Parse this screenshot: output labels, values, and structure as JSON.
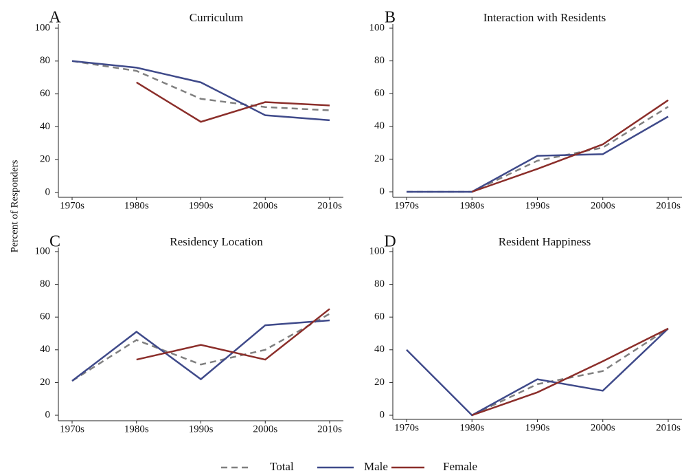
{
  "ylabel": "Percent of Responders",
  "chart_data": [
    {
      "type": "line",
      "label": "A",
      "title": "Curriculum",
      "categories": [
        "1970s",
        "1980s",
        "1990s",
        "2000s",
        "2010s"
      ],
      "ylim": [
        0,
        100
      ],
      "yticks": [
        0,
        20,
        40,
        60,
        80,
        100
      ],
      "series": [
        {
          "name": "Total",
          "color": "#808080",
          "dashed": true,
          "values": [
            80,
            74,
            57,
            52,
            50
          ]
        },
        {
          "name": "Male",
          "color": "#3f4a8a",
          "values": [
            80,
            76,
            67,
            47,
            44
          ]
        },
        {
          "name": "Female",
          "color": "#8b2e2a",
          "values": [
            null,
            67,
            43,
            55,
            53
          ]
        }
      ]
    },
    {
      "type": "line",
      "label": "B",
      "title": "Interaction with Residents",
      "categories": [
        "1970s",
        "1980s",
        "1990s",
        "2000s",
        "2010s"
      ],
      "ylim": [
        0,
        100
      ],
      "yticks": [
        0,
        20,
        40,
        60,
        80,
        100
      ],
      "series": [
        {
          "name": "Total",
          "color": "#808080",
          "dashed": true,
          "values": [
            0,
            0,
            19,
            27,
            52
          ]
        },
        {
          "name": "Male",
          "color": "#3f4a8a",
          "values": [
            0,
            0,
            22,
            23,
            46
          ]
        },
        {
          "name": "Female",
          "color": "#8b2e2a",
          "values": [
            null,
            0,
            14,
            29,
            56
          ]
        }
      ]
    },
    {
      "type": "line",
      "label": "C",
      "title": "Residency Location",
      "categories": [
        "1970s",
        "1980s",
        "1990s",
        "2000s",
        "2010s"
      ],
      "ylim": [
        0,
        100
      ],
      "yticks": [
        0,
        20,
        40,
        60,
        80,
        100
      ],
      "series": [
        {
          "name": "Total",
          "color": "#808080",
          "dashed": true,
          "values": [
            21,
            46,
            31,
            40,
            62
          ]
        },
        {
          "name": "Male",
          "color": "#3f4a8a",
          "values": [
            21,
            51,
            22,
            55,
            58
          ]
        },
        {
          "name": "Female",
          "color": "#8b2e2a",
          "values": [
            null,
            34,
            43,
            34,
            65
          ]
        }
      ]
    },
    {
      "type": "line",
      "label": "D",
      "title": "Resident Happiness",
      "categories": [
        "1970s",
        "1980s",
        "1990s",
        "2000s",
        "2010s"
      ],
      "ylim": [
        0,
        100
      ],
      "yticks": [
        0,
        20,
        40,
        60,
        80,
        100
      ],
      "series": [
        {
          "name": "Total",
          "color": "#808080",
          "dashed": true,
          "values": [
            null,
            0,
            19,
            27,
            53
          ]
        },
        {
          "name": "Male",
          "color": "#3f4a8a",
          "values": [
            40,
            0,
            22,
            15,
            53
          ]
        },
        {
          "name": "Female",
          "color": "#8b2e2a",
          "values": [
            null,
            0,
            14,
            33,
            53
          ]
        }
      ]
    }
  ]
}
